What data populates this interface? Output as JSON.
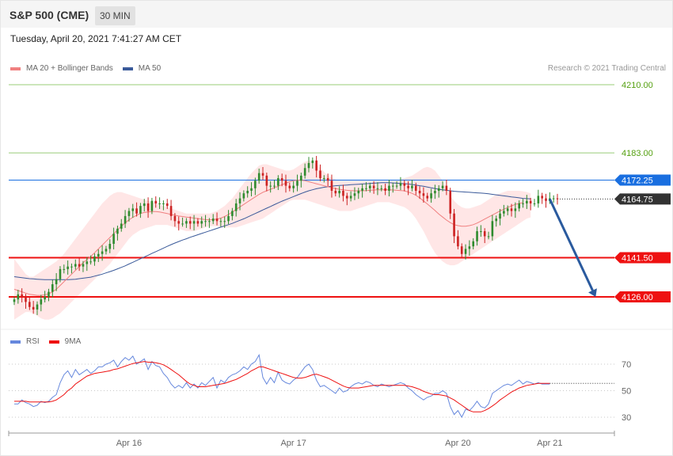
{
  "header": {
    "title": "S&P 500 (CME)",
    "interval": "30 MIN"
  },
  "datetime": "Tuesday, April 20, 2021 7:41:27 AM CET",
  "credit": "Research © 2021 Trading Central",
  "colors": {
    "up": "#2e8b2e",
    "down": "#cc2222",
    "band_fill": "#ffdede",
    "ma20": "#f08080",
    "ma50": "#3a5a9a",
    "support": "#ee1111",
    "resistance": "#1a6fe0",
    "target": "#99cc77",
    "arrow": "#2a5a9e",
    "rsi": "#6688dd",
    "rsi_ma": "#ee1111",
    "last_price": "#333333"
  },
  "legend": {
    "main": [
      {
        "label": "MA 20 + Bollinger Bands",
        "color": "#f08080"
      },
      {
        "label": "MA 50",
        "color": "#3a5a9a"
      }
    ],
    "rsi": [
      {
        "label": "RSI",
        "color": "#6688dd"
      },
      {
        "label": "9MA",
        "color": "#ee1111"
      }
    ]
  },
  "chart_data": [
    {
      "type": "candlestick",
      "ylim": [
        4115,
        4216
      ],
      "x_range": [
        0,
        142
      ],
      "x_ticks": [
        {
          "x": 30,
          "label": "Apr 16"
        },
        {
          "x": 73,
          "label": "Apr 17"
        },
        {
          "x": 116,
          "label": "Apr 20"
        },
        {
          "x": 140,
          "label": "Apr 21"
        }
      ],
      "levels": [
        {
          "value": 4210.0,
          "label": "4210.00",
          "kind": "target"
        },
        {
          "value": 4183.0,
          "label": "4183.00",
          "kind": "target"
        },
        {
          "value": 4172.25,
          "label": "4172.25",
          "kind": "resistance"
        },
        {
          "value": 4164.75,
          "label": "4164.75",
          "kind": "last_price"
        },
        {
          "value": 4141.5,
          "label": "4141.50",
          "kind": "support"
        },
        {
          "value": 4126.0,
          "label": "4126.00",
          "kind": "support"
        }
      ],
      "close": [
        4125.0,
        4127.0,
        4126.0,
        4124.0,
        4122.0,
        4121.0,
        4123.0,
        4125.0,
        4126.0,
        4128.0,
        4131.0,
        4133.0,
        4137.0,
        4137.0,
        4138.0,
        4138.0,
        4139.0,
        4138.0,
        4139.0,
        4140.0,
        4140.0,
        4142.0,
        4143.0,
        4144.0,
        4145.0,
        4147.0,
        4151.0,
        4153.0,
        4155.0,
        4158.0,
        4160.0,
        4161.0,
        4159.0,
        4162.0,
        4163.0,
        4160.0,
        4164.0,
        4163.0,
        4163.0,
        4163.0,
        4162.0,
        4158.0,
        4156.0,
        4155.0,
        4155.0,
        4156.0,
        4155.0,
        4156.0,
        4155.0,
        4156.0,
        4156.0,
        4156.0,
        4157.0,
        4156.0,
        4156.0,
        4156.0,
        4158.0,
        4160.0,
        4163.0,
        4165.0,
        4167.0,
        4168.0,
        4169.0,
        4172.0,
        4175.0,
        4174.0,
        4170.0,
        4170.0,
        4170.0,
        4173.0,
        4172.0,
        4170.0,
        4169.0,
        4170.0,
        4172.0,
        4174.0,
        4177.0,
        4179.0,
        4180.0,
        4176.0,
        4173.0,
        4173.0,
        4172.0,
        4168.0,
        4167.0,
        4168.0,
        4166.0,
        4165.0,
        4166.0,
        4167.0,
        4168.0,
        4169.0,
        4169.0,
        4170.0,
        4169.0,
        4169.0,
        4169.0,
        4168.0,
        4170.0,
        4170.0,
        4170.0,
        4171.0,
        4170.0,
        4169.0,
        4170.0,
        4168.0,
        4167.0,
        4166.0,
        4165.0,
        4167.0,
        4168.0,
        4169.0,
        4170.0,
        4168.0,
        4159.0,
        4150.0,
        4146.0,
        4143.0,
        4145.0,
        4146.0,
        4148.0,
        4152.0,
        4152.0,
        4150.0,
        4150.0,
        4156.0,
        4157.0,
        4159.0,
        4160.0,
        4161.0,
        4160.0,
        4161.0,
        4163.0,
        4163.0,
        4164.0,
        4163.0,
        4163.0,
        4166.0,
        4165.0,
        4164.0,
        4165.0,
        4165.0,
        4164.75
      ],
      "ohlc_note": "body opens at previous close; highs/lows approximate",
      "ma20": [
        4129.0,
        4128.5,
        4128.0,
        4127.5,
        4127.0,
        4126.8,
        4126.6,
        4126.6,
        4126.8,
        4127.2,
        4128.0,
        4129.0,
        4130.5,
        4132.0,
        4133.5,
        4135.0,
        4136.5,
        4138.0,
        4139.5,
        4140.8,
        4142.0,
        4143.5,
        4145.0,
        4146.5,
        4148.0,
        4149.5,
        4151.0,
        4152.5,
        4154.0,
        4155.3,
        4156.5,
        4157.5,
        4158.3,
        4159.0,
        4159.4,
        4159.6,
        4159.8,
        4159.8,
        4159.6,
        4159.3,
        4159.0,
        4158.6,
        4158.3,
        4158.0,
        4157.8,
        4157.6,
        4157.4,
        4157.2,
        4157.0,
        4156.8,
        4156.6,
        4156.5,
        4156.6,
        4156.8,
        4157.2,
        4157.8,
        4158.6,
        4159.6,
        4160.6,
        4161.6,
        4162.6,
        4163.6,
        4164.6,
        4165.6,
        4166.6,
        4167.4,
        4168.0,
        4168.6,
        4169.2,
        4169.8,
        4170.4,
        4171.0,
        4171.6,
        4172.0,
        4172.2,
        4172.2,
        4172.0,
        4171.6,
        4171.2,
        4170.8,
        4170.4,
        4170.0,
        4169.6,
        4169.2,
        4168.9,
        4168.6,
        4168.4,
        4168.2,
        4168.1,
        4168.0,
        4168.0,
        4168.0,
        4168.1,
        4168.2,
        4168.3,
        4168.4,
        4168.4,
        4168.4,
        4168.4,
        4168.3,
        4168.2,
        4168.1,
        4168.0,
        4167.5,
        4167.0,
        4166.2,
        4165.2,
        4164.0,
        4162.8,
        4161.5,
        4160.2,
        4158.8,
        4157.6,
        4156.4,
        4155.4,
        4154.6,
        4154.2,
        4154.0,
        4154.0,
        4154.2,
        4154.6,
        4155.2,
        4156.0,
        4156.8,
        4157.6,
        4158.4,
        4159.2,
        4160.0,
        4160.7,
        4161.4,
        4162.0,
        4162.6,
        4163.0,
        4163.4
      ],
      "ma50": [
        4134.0,
        4133.8,
        4133.6,
        4133.4,
        4133.2,
        4133.1,
        4133.0,
        4132.9,
        4132.8,
        4132.8,
        4132.8,
        4132.8,
        4132.8,
        4132.8,
        4132.8,
        4132.9,
        4133.0,
        4133.2,
        4133.4,
        4133.6,
        4133.8,
        4134.2,
        4134.6,
        4135.0,
        4135.5,
        4136.0,
        4136.5,
        4137.1,
        4137.7,
        4138.3,
        4139.0,
        4139.7,
        4140.4,
        4141.1,
        4141.8,
        4142.5,
        4143.2,
        4143.9,
        4144.6,
        4145.3,
        4146.0,
        4146.7,
        4147.3,
        4147.9,
        4148.5,
        4149.0,
        4149.6,
        4150.1,
        4150.6,
        4151.1,
        4151.6,
        4152.1,
        4152.6,
        4153.1,
        4153.6,
        4154.1,
        4154.6,
        4155.1,
        4155.7,
        4156.3,
        4156.9,
        4157.6,
        4158.3,
        4159.0,
        4159.7,
        4160.4,
        4161.1,
        4161.8,
        4162.5,
        4163.2,
        4163.9,
        4164.5,
        4165.1,
        4165.7,
        4166.3,
        4166.9,
        4167.5,
        4168.0,
        4168.4,
        4168.8,
        4169.1,
        4169.4,
        4169.6,
        4169.8,
        4170.0,
        4170.1,
        4170.2,
        4170.3,
        4170.4,
        4170.5,
        4170.6,
        4170.7,
        4170.8,
        4170.9,
        4171.0,
        4171.1,
        4171.2,
        4171.2,
        4171.2,
        4171.1,
        4171.0,
        4170.9,
        4170.8,
        4170.7,
        4170.5,
        4170.3,
        4170.0,
        4169.8,
        4169.5,
        4169.2,
        4168.9,
        4168.6,
        4168.4,
        4168.2,
        4168.0,
        4167.8,
        4167.7,
        4167.6,
        4167.5,
        4167.4,
        4167.3,
        4167.2,
        4167.1,
        4167.0,
        4166.8,
        4166.6,
        4166.4,
        4166.2,
        4166.0,
        4165.8,
        4165.6,
        4165.4,
        4165.2,
        4165.0,
        4164.9,
        4164.8
      ],
      "band_upper": [
        4141.0,
        4139.0,
        4137.0,
        4135.0,
        4134.0,
        4134.0,
        4135.0,
        4136.0,
        4137.0,
        4138.0,
        4139.0,
        4140.0,
        4141.5,
        4143.0,
        4145.0,
        4147.0,
        4149.0,
        4151.0,
        4153.0,
        4155.0,
        4157.0,
        4159.0,
        4161.0,
        4163.0,
        4164.5,
        4166.0,
        4167.0,
        4167.5,
        4167.5,
        4167.0,
        4166.5,
        4166.0,
        4165.5,
        4165.0,
        4164.5,
        4164.0,
        4163.5,
        4163.0,
        4162.5,
        4162.0,
        4161.5,
        4161.0,
        4160.5,
        4160.0,
        4159.5,
        4159.0,
        4159.0,
        4159.0,
        4159.0,
        4159.0,
        4159.0,
        4159.0,
        4159.5,
        4160.0,
        4161.0,
        4162.0,
        4163.5,
        4165.0,
        4167.0,
        4169.0,
        4171.0,
        4173.0,
        4175.0,
        4176.5,
        4178.0,
        4178.5,
        4178.5,
        4178.0,
        4177.5,
        4177.0,
        4176.5,
        4176.0,
        4176.0,
        4176.5,
        4177.5,
        4178.5,
        4179.5,
        4180.0,
        4179.5,
        4178.5,
        4177.0,
        4175.5,
        4174.0,
        4173.0,
        4172.5,
        4172.0,
        4172.0,
        4172.0,
        4172.0,
        4172.0,
        4172.0,
        4172.0,
        4172.0,
        4172.0,
        4172.0,
        4172.0,
        4172.0,
        4172.0,
        4172.0,
        4172.0,
        4172.0,
        4172.5,
        4173.0,
        4173.5,
        4174.0,
        4175.0,
        4176.0,
        4177.0,
        4177.5,
        4177.0,
        4176.0,
        4174.0,
        4172.0,
        4169.0,
        4166.0,
        4164.0,
        4162.5,
        4161.5,
        4161.0,
        4161.0,
        4161.5,
        4162.0,
        4162.5,
        4163.5,
        4164.5,
        4165.5,
        4166.5,
        4167.0,
        4167.5,
        4168.0,
        4168.0,
        4168.0,
        4168.0,
        4167.8,
        4167.5,
        4167.0
      ],
      "band_lower": [
        4117.0,
        4118.0,
        4119.0,
        4120.0,
        4120.0,
        4119.5,
        4118.5,
        4117.5,
        4117.0,
        4117.0,
        4117.5,
        4118.5,
        4119.5,
        4121.0,
        4122.5,
        4124.0,
        4125.5,
        4127.0,
        4128.5,
        4130.0,
        4131.5,
        4133.0,
        4134.5,
        4136.0,
        4137.5,
        4139.0,
        4141.0,
        4143.0,
        4145.0,
        4147.0,
        4149.0,
        4150.5,
        4151.5,
        4152.5,
        4153.0,
        4153.5,
        4154.0,
        4154.5,
        4154.5,
        4154.5,
        4154.5,
        4154.0,
        4153.5,
        4153.0,
        4152.5,
        4152.0,
        4152.0,
        4152.0,
        4152.5,
        4153.0,
        4153.5,
        4154.0,
        4154.0,
        4154.0,
        4153.5,
        4153.5,
        4153.5,
        4153.5,
        4153.5,
        4154.0,
        4154.5,
        4155.0,
        4155.5,
        4156.0,
        4156.5,
        4157.0,
        4158.0,
        4159.0,
        4160.0,
        4161.0,
        4162.0,
        4163.0,
        4164.0,
        4164.5,
        4164.5,
        4164.5,
        4164.5,
        4164.0,
        4163.5,
        4163.0,
        4162.5,
        4162.0,
        4161.5,
        4161.0,
        4160.5,
        4160.0,
        4160.0,
        4160.0,
        4160.0,
        4160.5,
        4161.0,
        4161.5,
        4162.0,
        4162.5,
        4163.0,
        4163.5,
        4163.5,
        4163.5,
        4163.5,
        4163.0,
        4162.5,
        4162.0,
        4161.5,
        4160.5,
        4159.0,
        4157.0,
        4154.5,
        4152.0,
        4149.0,
        4146.0,
        4143.5,
        4141.5,
        4140.0,
        4139.0,
        4138.5,
        4138.5,
        4139.0,
        4140.0,
        4141.0,
        4142.0,
        4143.0,
        4144.0,
        4145.0,
        4146.0,
        4147.0,
        4148.0,
        4149.0,
        4150.0,
        4151.0,
        4152.0,
        4153.0,
        4154.0,
        4155.0,
        4156.0,
        4157.0,
        4157.5
      ],
      "projection": {
        "from": {
          "x": 140,
          "y": 4164.75
        },
        "to": {
          "x": 152,
          "y": 4126.0
        }
      }
    },
    {
      "type": "line",
      "name": "RSI",
      "ylim": [
        20,
        80
      ],
      "y_ticks": [
        30,
        50,
        70
      ],
      "rsi": [
        40.0,
        40.0,
        43.0,
        41.0,
        40.0,
        38.0,
        39.0,
        42.0,
        41.0,
        42.0,
        45.0,
        47.0,
        56.0,
        62.0,
        65.0,
        60.0,
        66.0,
        62.0,
        64.0,
        66.0,
        63.0,
        65.0,
        68.0,
        68.0,
        70.0,
        71.0,
        73.0,
        68.0,
        72.0,
        75.0,
        73.0,
        76.0,
        70.0,
        72.0,
        74.0,
        66.0,
        72.0,
        69.0,
        68.0,
        63.0,
        60.0,
        55.0,
        52.0,
        54.0,
        52.0,
        56.0,
        52.0,
        55.0,
        52.0,
        56.0,
        54.0,
        57.0,
        60.0,
        52.0,
        58.0,
        56.0,
        60.0,
        62.0,
        63.0,
        65.0,
        68.0,
        66.0,
        70.0,
        72.0,
        77.0,
        60.0,
        55.0,
        60.0,
        56.0,
        64.0,
        58.0,
        56.0,
        55.0,
        58.0,
        60.0,
        64.0,
        68.0,
        70.0,
        66.0,
        58.0,
        53.0,
        54.0,
        52.0,
        50.0,
        48.0,
        52.0,
        49.0,
        50.0,
        53.0,
        55.0,
        56.0,
        55.0,
        57.0,
        56.0,
        54.0,
        53.0,
        55.0,
        54.0,
        53.0,
        54.0,
        55.0,
        56.0,
        55.0,
        52.0,
        50.0,
        47.0,
        45.0,
        43.0,
        45.0,
        46.0,
        48.0,
        48.0,
        50.0,
        48.0,
        38.0,
        32.0,
        35.0,
        30.0,
        36.0,
        35.0,
        38.0,
        42.0,
        38.0,
        37.0,
        40.0,
        48.0,
        50.0,
        52.0,
        54.0,
        55.0,
        54.0,
        56.0,
        58.0,
        55.0,
        57.0,
        56.0,
        55.0,
        56.0,
        55.0,
        55.0,
        55.0
      ],
      "rsi_ma": [
        42.0,
        42.0,
        42.0,
        42.0,
        41.5,
        41.5,
        41.5,
        41.5,
        41.5,
        41.5,
        42.0,
        43.0,
        45.0,
        47.0,
        50.0,
        52.0,
        55.0,
        57.0,
        59.0,
        61.0,
        62.0,
        63.0,
        63.5,
        64.0,
        64.5,
        65.0,
        66.0,
        66.5,
        67.5,
        68.5,
        69.5,
        70.5,
        71.0,
        71.5,
        72.0,
        71.5,
        71.5,
        71.0,
        70.5,
        69.5,
        68.0,
        66.0,
        64.0,
        62.0,
        59.5,
        57.0,
        55.0,
        54.0,
        53.0,
        53.0,
        53.0,
        53.5,
        54.0,
        54.5,
        55.0,
        55.5,
        56.5,
        57.5,
        58.5,
        60.0,
        61.5,
        63.0,
        65.0,
        66.5,
        68.0,
        68.0,
        67.0,
        66.0,
        65.0,
        64.0,
        63.0,
        62.0,
        61.0,
        60.0,
        59.5,
        59.5,
        60.0,
        61.0,
        62.0,
        62.5,
        61.5,
        60.5,
        59.5,
        58.0,
        56.5,
        55.0,
        53.5,
        52.5,
        52.0,
        52.0,
        52.0,
        52.5,
        53.0,
        53.5,
        54.0,
        54.0,
        54.0,
        54.0,
        54.0,
        54.0,
        54.0,
        54.0,
        54.0,
        53.5,
        53.0,
        52.0,
        51.0,
        49.5,
        48.5,
        47.5,
        47.0,
        47.0,
        46.5,
        46.0,
        44.5,
        43.0,
        41.0,
        39.0,
        37.0,
        35.0,
        34.0,
        34.0,
        34.0,
        35.0,
        36.5,
        38.5,
        40.5,
        43.0,
        45.0,
        47.0,
        49.0,
        50.5,
        52.0,
        53.0,
        54.0,
        54.5,
        55.0,
        55.5,
        55.5,
        55.5,
        55.5
      ]
    }
  ]
}
